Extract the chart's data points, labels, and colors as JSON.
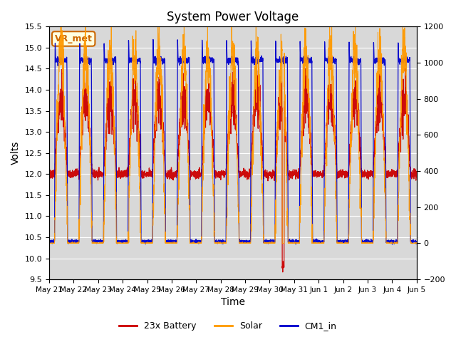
{
  "title": "System Power Voltage",
  "xlabel": "Time",
  "ylabel_left": "Volts",
  "ylim_left": [
    9.5,
    15.5
  ],
  "ylim_right": [
    -200,
    1200
  ],
  "yticks_left": [
    9.5,
    10.0,
    10.5,
    11.0,
    11.5,
    12.0,
    12.5,
    13.0,
    13.5,
    14.0,
    14.5,
    15.0,
    15.5
  ],
  "yticks_right": [
    -200,
    0,
    200,
    400,
    600,
    800,
    1000,
    1200
  ],
  "x_labels": [
    "May 21",
    "May 22",
    "May 23",
    "May 24",
    "May 25",
    "May 26",
    "May 27",
    "May 28",
    "May 29",
    "May 30",
    "May 31",
    "Jun 1",
    "Jun 2",
    "Jun 3",
    "Jun 4",
    "Jun 5"
  ],
  "annotation_text": "VR_met",
  "annotation_color": "#cc6600",
  "background_color": "#d8d8d8",
  "grid_color": "white",
  "legend_entries": [
    "23x Battery",
    "Solar",
    "CM1_in"
  ],
  "line_colors": {
    "battery": "#cc0000",
    "solar": "#ff9900",
    "cm1": "#0000cc"
  },
  "n_days": 15,
  "seed": 42
}
